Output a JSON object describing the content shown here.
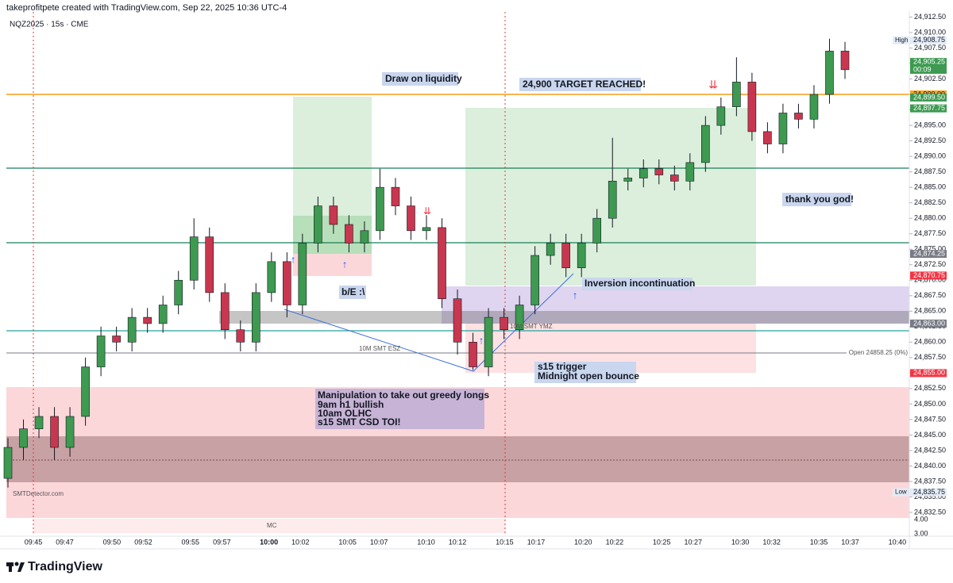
{
  "chart_data": {
    "type": "candlestick",
    "title": "takeprofitpete created with TradingView.com, Sep 22, 2025 10:36 UTC-4",
    "symbol": "NQZ2025 · 15s · CME",
    "up_color": "#3d9a50",
    "down_color": "#c8374f",
    "ylim": [
      24832.5,
      24910
    ],
    "yticks": [
      {
        "value": 24912.5,
        "label": "24,912.50"
      },
      {
        "value": 24910,
        "label": "24,910.00"
      },
      {
        "value": 24907.5,
        "label": "24,907.50"
      },
      {
        "value": 24905,
        "label": "24,905.00"
      },
      {
        "value": 24902.5,
        "label": "24,902.50"
      },
      {
        "value": 24900,
        "label": "24,900.00"
      },
      {
        "value": 24897.5,
        "label": "24,897.50"
      },
      {
        "value": 24895,
        "label": "24,895.00"
      },
      {
        "value": 24892.5,
        "label": "24,892.50"
      },
      {
        "value": 24890,
        "label": "24,890.00"
      },
      {
        "value": 24887.5,
        "label": "24,887.50"
      },
      {
        "value": 24885,
        "label": "24,885.00"
      },
      {
        "value": 24882.5,
        "label": "24,882.50"
      },
      {
        "value": 24880,
        "label": "24,880.00"
      },
      {
        "value": 24877.5,
        "label": "24,877.50"
      },
      {
        "value": 24875,
        "label": "24,875.00"
      },
      {
        "value": 24872.5,
        "label": "24,872.50"
      },
      {
        "value": 24870,
        "label": "24,870.00"
      },
      {
        "value": 24867.5,
        "label": "24,867.50"
      },
      {
        "value": 24865,
        "label": "24,865.00"
      },
      {
        "value": 24862.5,
        "label": "24,862.50"
      },
      {
        "value": 24860,
        "label": "24,860.00"
      },
      {
        "value": 24857.5,
        "label": "24,857.50"
      },
      {
        "value": 24855,
        "label": "24,855.00"
      },
      {
        "value": 24852.5,
        "label": "24,852.50"
      },
      {
        "value": 24850,
        "label": "24,850.00"
      },
      {
        "value": 24847.5,
        "label": "24,847.50"
      },
      {
        "value": 24845,
        "label": "24,845.00"
      },
      {
        "value": 24842.5,
        "label": "24,842.50"
      },
      {
        "value": 24840,
        "label": "24,840.00"
      },
      {
        "value": 24837.5,
        "label": "24,837.50"
      },
      {
        "value": 24835,
        "label": "24,835.00"
      },
      {
        "value": 24832.5,
        "label": "24,832.50"
      }
    ],
    "indicator_ticks": [
      "4.00",
      "3.00"
    ],
    "price_badges": [
      {
        "value": 24908.75,
        "label": "24,908.75",
        "color": "#e3ecf7",
        "text_color": "#131722",
        "tag": "High"
      },
      {
        "value": 24905.25,
        "label": "24,905.25",
        "color": "#3d9a50",
        "text_color": "#ffffff",
        "sub": "00:09"
      },
      {
        "value": 24900,
        "label": "24,900.00",
        "color": "#f5a623",
        "text_color": "#131722"
      },
      {
        "value": 24899.5,
        "label": "24,899.50",
        "color": "#3d9a50",
        "text_color": "#ffffff"
      },
      {
        "value": 24897.75,
        "label": "24,897.75",
        "color": "#3d9a50",
        "text_color": "#ffffff"
      },
      {
        "value": 24874.25,
        "label": "24,874.25",
        "color": "#787b86",
        "text_color": "#ffffff"
      },
      {
        "value": 24870.75,
        "label": "24,870.75",
        "color": "#f23645",
        "text_color": "#ffffff"
      },
      {
        "value": 24863,
        "label": "24,863.00",
        "color": "#787b86",
        "text_color": "#ffffff"
      },
      {
        "value": 24855,
        "label": "24,855.00",
        "color": "#f23645",
        "text_color": "#ffffff"
      },
      {
        "value": 24835.75,
        "label": "24,835.75",
        "color": "#e3ecf7",
        "text_color": "#131722",
        "tag": "Low"
      }
    ],
    "time_labels": [
      "09:45",
      "09:47",
      "09:50",
      "09:52",
      "09:55",
      "09:57",
      "10:00",
      "10:02",
      "10:05",
      "10:07",
      "10:10",
      "10:12",
      "10:15",
      "10:17",
      "10:20",
      "10:22",
      "10:25",
      "10:27",
      "10:30",
      "10:32",
      "10:35",
      "10:37",
      "10:40"
    ],
    "candles": {
      "open": [
        24838,
        24843,
        24846,
        24848,
        24843,
        24848,
        24856,
        24861,
        24860,
        24864,
        24863,
        24866,
        24870,
        24877,
        24868,
        24862,
        24860,
        24868,
        24873,
        24866,
        24876,
        24882,
        24879,
        24876,
        24878,
        24885,
        24882,
        24878,
        24878.5,
        24867,
        24860,
        24856,
        24864,
        24862,
        24866,
        24874,
        24876,
        24872,
        24876,
        24880,
        24886,
        24886.5,
        24888,
        24887,
        24886,
        24889,
        24895,
        24898,
        24902,
        24894,
        24892,
        24897,
        24896,
        24900,
        24907
      ],
      "high": [
        24844.5,
        24847.5,
        24849.5,
        24849.5,
        24849.5,
        24857.5,
        24862.5,
        24862.5,
        24865.5,
        24865.5,
        24867.5,
        24871.5,
        24880,
        24878.5,
        24869.5,
        24863.5,
        24869.5,
        24874.5,
        24874.5,
        24877.5,
        24883.5,
        24883.5,
        24880.5,
        24879.5,
        24888,
        24886.5,
        24883.5,
        24880.5,
        24880,
        24868.5,
        24861.5,
        24865.5,
        24865.5,
        24867.5,
        24875.5,
        24877.5,
        24877.5,
        24877.5,
        24881.5,
        24893,
        24888,
        24889.5,
        24889.5,
        24888.5,
        24890.5,
        24896.5,
        24899.5,
        24906,
        24903.5,
        24895.5,
        24898.5,
        24898.5,
        24901.5,
        24909,
        24908.5
      ],
      "low": [
        24836.5,
        24841,
        24844.5,
        24841,
        24841.5,
        24846.5,
        24854.5,
        24858.5,
        24858.5,
        24861.5,
        24861.5,
        24864.5,
        24868.5,
        24866.5,
        24860.5,
        24858.5,
        24858.5,
        24866.5,
        24864,
        24864.5,
        24874.5,
        24877.5,
        24874.5,
        24874.5,
        24876.5,
        24880.5,
        24876.5,
        24876.5,
        24865.5,
        24858,
        24855.5,
        24854.5,
        24860.5,
        24860.5,
        24864.5,
        24872.5,
        24870.5,
        24870.5,
        24874.5,
        24878.5,
        24884.5,
        24885,
        24885.5,
        24884.5,
        24884.5,
        24887.5,
        24893.5,
        24896.5,
        24892.5,
        24890.5,
        24890.5,
        24894.5,
        24894.5,
        24898.5,
        24902.5
      ],
      "close": [
        24843,
        24846,
        24848,
        24843,
        24848,
        24856,
        24861,
        24860,
        24864,
        24863,
        24866,
        24870,
        24877,
        24868,
        24862,
        24860,
        24868,
        24873,
        24866,
        24876,
        24882,
        24879,
        24876,
        24878,
        24885,
        24882,
        24878,
        24878.5,
        24867,
        24860,
        24856,
        24864,
        24862,
        24866,
        24874,
        24876,
        24872,
        24876,
        24880,
        24886,
        24886.5,
        24888,
        24887,
        24886,
        24889,
        24895,
        24898,
        24902,
        24894,
        24892,
        24897,
        24896,
        24900,
        24907,
        24904
      ]
    },
    "annotations": {
      "draw_on_liquidity": "Draw on liquidity",
      "target": "24,900 TARGET REACHED!",
      "thanks": "thank you god!",
      "be": "b/E :\\",
      "inversion": "Inversion incontinuation",
      "s15": [
        "s15 trigger",
        "Midnight open bounce"
      ],
      "manipulation": [
        "Manipulation to take out greedy longs",
        "9am h1 bullish",
        "10am OLHC",
        "s15 SMT CSD TOI!"
      ],
      "smt_esz": "10M SMT ESZ",
      "smt_ymz": "10M SMT YMZ",
      "open_label": "Open 24858.25 (0%)",
      "watermark": "SMTDetector.com",
      "mc": "MC"
    },
    "brand": "TradingView"
  }
}
